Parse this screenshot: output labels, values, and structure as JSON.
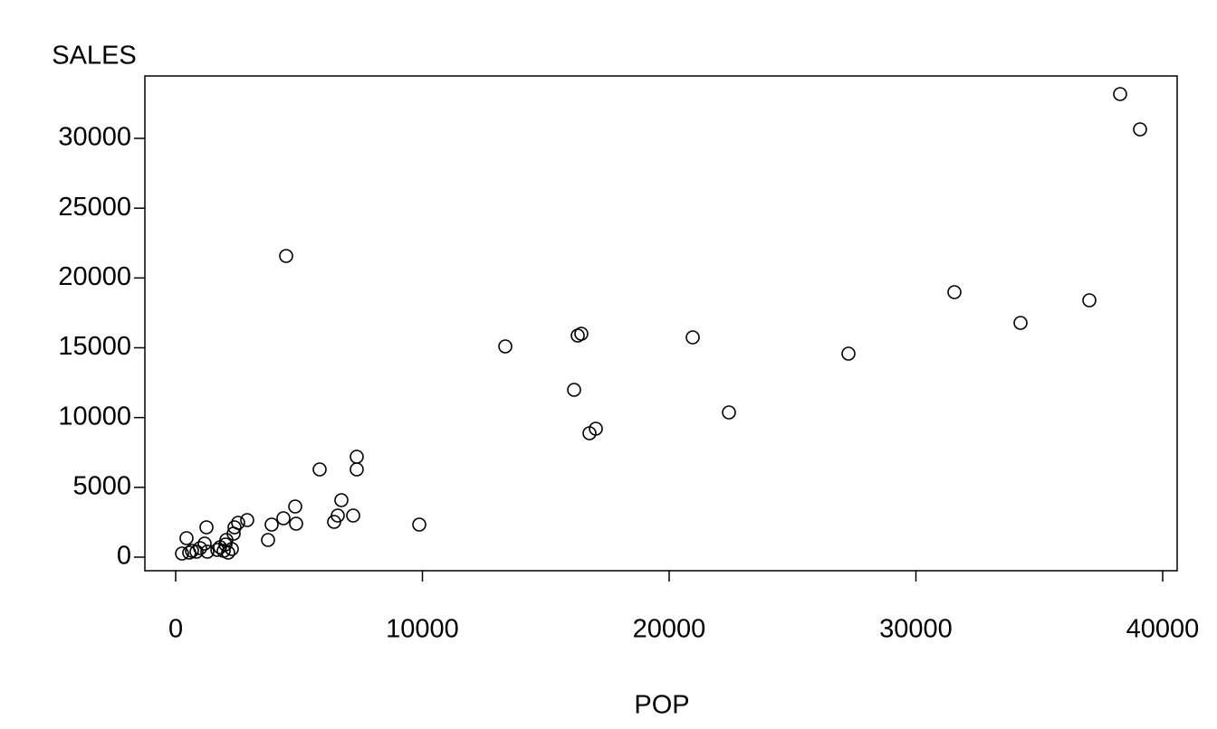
{
  "chart_data": {
    "type": "scatter",
    "x_label": "POP",
    "y_label": "SALES",
    "x": [
      38275,
      39083,
      4477,
      31560,
      37028,
      34239,
      16440,
      16294,
      20954,
      13358,
      27266,
      16147,
      22422,
      17028,
      16771,
      7339,
      5835,
      7339,
      6716,
      4844,
      6569,
      7193,
      4367,
      6422,
      4881,
      3890,
      9872,
      2899,
      2532,
      2385,
      1248,
      2349,
      440,
      3743,
      2055,
      2018,
      1174,
      1798,
      2275,
      991,
      1688,
      661,
      1945,
      1284,
      844,
      2128,
      257,
      550
    ],
    "values": [
      33175,
      30648,
      21577,
      18985,
      18402,
      16782,
      16005,
      15875,
      15745,
      15098,
      14579,
      11987,
      10367,
      9201,
      8877,
      7192,
      6285,
      6285,
      4082,
      3629,
      2981,
      2981,
      2786,
      2527,
      2397,
      2333,
      2333,
      2657,
      2462,
      2138,
      2138,
      1685,
      1361,
      1231,
      1231,
      907,
      972,
      713,
      583,
      648,
      518,
      454,
      454,
      389,
      389,
      324,
      259,
      324
    ],
    "color": "#000000",
    "xlim": [
      -1248,
      40587
    ],
    "ylim": [
      -972,
      34471
    ],
    "xticks": [
      0,
      10000,
      20000,
      30000,
      40000
    ],
    "yticks": [
      0,
      5000,
      10000,
      15000,
      20000,
      25000,
      30000
    ]
  }
}
